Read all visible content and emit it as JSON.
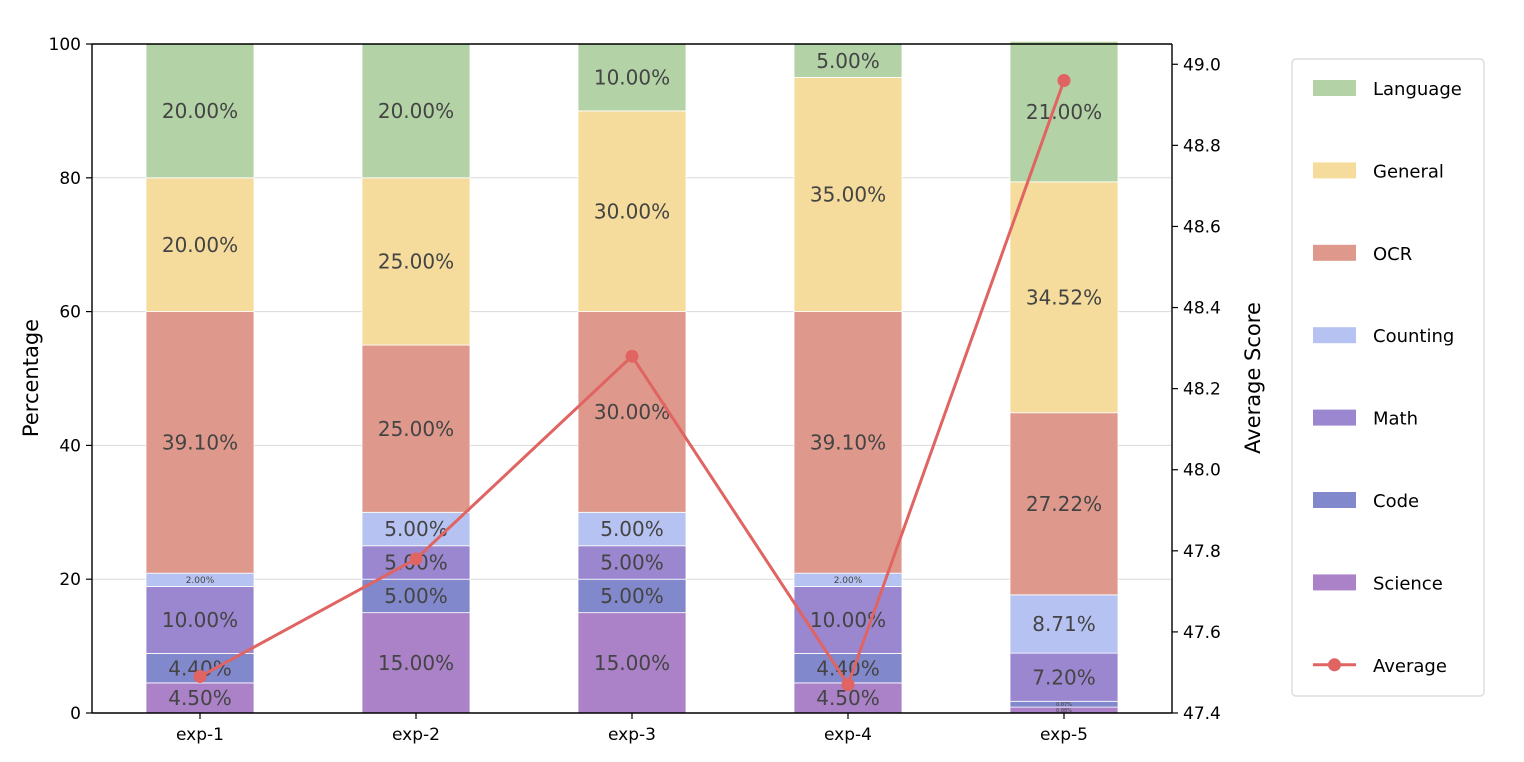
{
  "chart_data": {
    "type": "bar",
    "stacked": true,
    "categories": [
      "exp-1",
      "exp-2",
      "exp-3",
      "exp-4",
      "exp-5"
    ],
    "series": [
      {
        "name": "Science",
        "color": "#ab82c8",
        "values": [
          4.5,
          15.0,
          15.0,
          4.5,
          0.88
        ],
        "labels": [
          "4.50%",
          "15.00%",
          "15.00%",
          "4.50%",
          "0.88%"
        ]
      },
      {
        "name": "Code",
        "color": "#8288cc",
        "values": [
          4.4,
          5.0,
          5.0,
          4.4,
          0.87
        ],
        "labels": [
          "4.40%",
          "5.00%",
          "5.00%",
          "4.40%",
          "0.87%"
        ]
      },
      {
        "name": "Math",
        "color": "#9b87d0",
        "values": [
          10.0,
          5.0,
          5.0,
          10.0,
          7.2
        ],
        "labels": [
          "10.00%",
          "5.00%",
          "5.00%",
          "10.00%",
          "7.20%"
        ]
      },
      {
        "name": "Counting",
        "color": "#b6c3f2",
        "values": [
          2.0,
          5.0,
          5.0,
          2.0,
          8.71
        ],
        "labels": [
          "2.00%",
          "5.00%",
          "5.00%",
          "2.00%",
          "8.71%"
        ]
      },
      {
        "name": "OCR",
        "color": "#de998c",
        "values": [
          39.1,
          25.0,
          30.0,
          39.1,
          27.22
        ],
        "labels": [
          "39.10%",
          "25.00%",
          "30.00%",
          "39.10%",
          "27.22%"
        ]
      },
      {
        "name": "General",
        "color": "#f5dc9c",
        "values": [
          20.0,
          25.0,
          30.0,
          35.0,
          34.52
        ],
        "labels": [
          "20.00%",
          "25.00%",
          "30.00%",
          "35.00%",
          "34.52%"
        ]
      },
      {
        "name": "Language",
        "color": "#b3d3a7",
        "values": [
          20.0,
          20.0,
          10.0,
          5.0,
          21.0
        ],
        "labels": [
          "20.00%",
          "20.00%",
          "10.00%",
          "5.00%",
          "21.00%"
        ]
      }
    ],
    "line_series": {
      "name": "Average",
      "color": "#e06461",
      "values": [
        47.49,
        47.78,
        48.28,
        47.47,
        48.96
      ]
    },
    "ylabel": "Percentage",
    "ylim": [
      0,
      100
    ],
    "yticks": [
      "0",
      "20",
      "40",
      "60",
      "80",
      "100"
    ],
    "y2label": "Average Score",
    "y2lim": [
      47.4,
      49.05
    ],
    "y2ticks": [
      "47.4",
      "47.6",
      "47.8",
      "48.0",
      "48.2",
      "48.4",
      "48.6",
      "48.8",
      "49.0"
    ],
    "legend_order": [
      "Language",
      "General",
      "OCR",
      "Counting",
      "Math",
      "Code",
      "Science",
      "Average"
    ],
    "legend_position": "right",
    "grid": true
  }
}
